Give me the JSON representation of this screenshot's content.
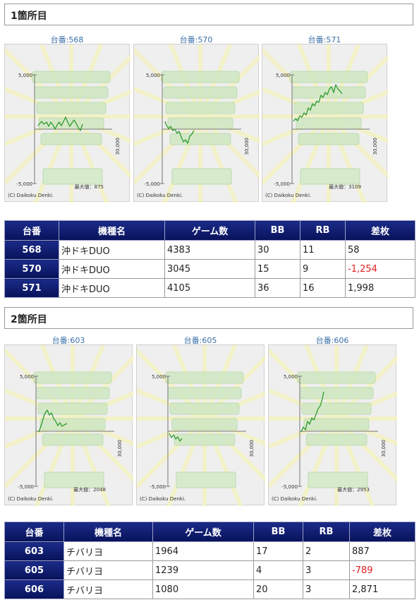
{
  "sections": [
    {
      "title": "1箇所目",
      "graphs": [
        {
          "label": "台番:568",
          "y_top": "5,000",
          "y_bottom": "-5,000",
          "x_tick": "30,000",
          "max_value": "最大値：875",
          "copyright": "(C) Daikoku Denki."
        },
        {
          "label": "台番:570",
          "y_top": "5,000",
          "y_bottom": "-5,000",
          "x_tick": "30,000",
          "max_value": "",
          "copyright": "(C) Daikoku Denki."
        },
        {
          "label": "台番:571",
          "y_top": "5,000",
          "y_bottom": "-5,000",
          "x_tick": "30,000",
          "max_value": "最大値：3109",
          "copyright": "(C) Daikoku Denki."
        }
      ],
      "table": {
        "headers": [
          "台番",
          "機種名",
          "ゲーム数",
          "BB",
          "RB",
          "差枚"
        ],
        "rows": [
          {
            "num": "568",
            "name": "沖ドキDUO",
            "games": "4383",
            "bb": "30",
            "rb": "11",
            "diff": "58"
          },
          {
            "num": "570",
            "name": "沖ドキDUO",
            "games": "3045",
            "bb": "15",
            "rb": "9",
            "diff": "-1,254"
          },
          {
            "num": "571",
            "name": "沖ドキDUO",
            "games": "4105",
            "bb": "36",
            "rb": "16",
            "diff": "1,998"
          }
        ]
      }
    },
    {
      "title": "2箇所目",
      "graphs": [
        {
          "label": "台番:603",
          "y_top": "5,000",
          "y_bottom": "-5,000",
          "x_tick": "30,000",
          "max_value": "最大値：2048",
          "copyright": "(C) Daikoku Denki."
        },
        {
          "label": "台番:605",
          "y_top": "5,000",
          "y_bottom": "-5,000",
          "x_tick": "30,000",
          "max_value": "",
          "copyright": "(C) Daikoku Denki."
        },
        {
          "label": "台番:606",
          "y_top": "5,000",
          "y_bottom": "-5,000",
          "x_tick": "30,000",
          "max_value": "最大値：2953",
          "copyright": "(C) Daikoku Denki."
        }
      ],
      "table": {
        "headers": [
          "台番",
          "機種名",
          "ゲーム数",
          "BB",
          "RB",
          "差枚"
        ],
        "rows": [
          {
            "num": "603",
            "name": "チバリヨ",
            "games": "1964",
            "bb": "17",
            "rb": "2",
            "diff": "887"
          },
          {
            "num": "605",
            "name": "チバリヨ",
            "games": "1239",
            "bb": "4",
            "rb": "3",
            "diff": "-789"
          },
          {
            "num": "606",
            "name": "チバリヨ",
            "games": "1080",
            "bb": "20",
            "rb": "3",
            "diff": "2,871"
          }
        ]
      }
    }
  ],
  "colors": {
    "header_bg": "#0d1a6e",
    "line": "#2f9a2f",
    "negative": "#e02020",
    "title_link": "#3a6fa8"
  }
}
